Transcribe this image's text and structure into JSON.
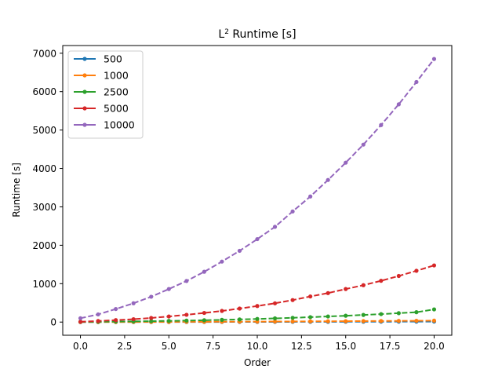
{
  "chart_data": {
    "type": "line",
    "title": "L",
    "title_superscript": "2",
    "title_rest": " Runtime [s]",
    "xlabel": "Order",
    "ylabel": "Runtime [s]",
    "xlim": [
      -1,
      21
    ],
    "ylim": [
      -343,
      7200
    ],
    "xticks": [
      0,
      2.5,
      5,
      7.5,
      10,
      12.5,
      15,
      17.5,
      20
    ],
    "xtick_labels": [
      "0.0",
      "2.5",
      "5.0",
      "7.5",
      "10.0",
      "12.5",
      "15.0",
      "17.5",
      "20.0"
    ],
    "yticks": [
      0,
      1000,
      2000,
      3000,
      4000,
      5000,
      6000,
      7000
    ],
    "ytick_labels": [
      "0",
      "1000",
      "2000",
      "3000",
      "4000",
      "5000",
      "6000",
      "7000"
    ],
    "grid": false,
    "legend_position": "top-left",
    "x": [
      0,
      1,
      2,
      3,
      4,
      5,
      6,
      7,
      8,
      9,
      10,
      11,
      12,
      13,
      14,
      15,
      16,
      17,
      18,
      19,
      20
    ],
    "series": [
      {
        "name": "500",
        "color": "#1f77b4",
        "values": [
          0.4,
          0.6,
          0.8,
          1.1,
          1.4,
          1.8,
          2.2,
          2.7,
          3.2,
          3.8,
          4.4,
          5.1,
          5.8,
          6.6,
          7.4,
          8.3,
          9.2,
          10.2,
          11.2,
          12.3,
          13.4
        ]
      },
      {
        "name": "1000",
        "color": "#ff7f0e",
        "values": [
          1,
          1.5,
          2.2,
          3,
          4,
          5,
          6.3,
          7.6,
          9,
          10.6,
          12.3,
          14.2,
          16.2,
          18.3,
          20.6,
          23,
          25.5,
          28.2,
          31,
          34,
          37
        ]
      },
      {
        "name": "2500",
        "color": "#2ca02c",
        "values": [
          6,
          9,
          13,
          18,
          24,
          31,
          39,
          48,
          58,
          69,
          82,
          96,
          111,
          128,
          146,
          165,
          186,
          208,
          232,
          257,
          330
        ]
      },
      {
        "name": "5000",
        "color": "#d62728",
        "values": [
          8,
          27,
          51,
          75,
          107,
          146,
          190,
          238,
          290,
          352,
          418,
          489,
          573,
          667,
          755,
          860,
          960,
          1075,
          1200,
          1335,
          1475
        ]
      },
      {
        "name": "10000",
        "color": "#9467bd",
        "values": [
          100,
          200,
          340,
          490,
          660,
          860,
          1070,
          1310,
          1575,
          1855,
          2160,
          2480,
          2880,
          3270,
          3700,
          4150,
          4620,
          5130,
          5670,
          6250,
          6850
        ]
      }
    ]
  }
}
